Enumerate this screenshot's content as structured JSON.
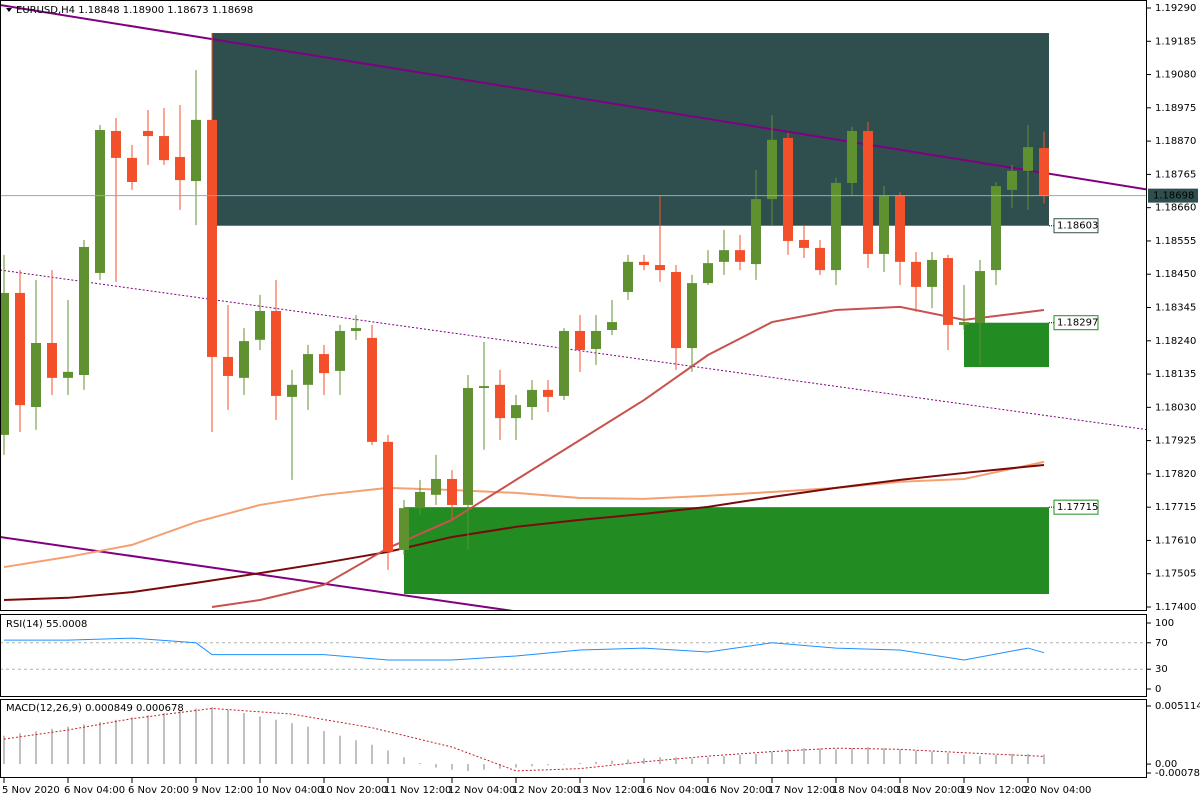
{
  "chart_data": [
    {
      "type": "candlestick",
      "title": "EURUSD,H4",
      "header_values": [
        "1.18848",
        "1.18900",
        "1.18673",
        "1.18698"
      ],
      "categories": [
        "5 Nov 2020",
        null,
        null,
        null,
        "6 Nov 04:00",
        null,
        null,
        null,
        "6 Nov 20:00",
        null,
        null,
        null,
        "9 Nov 12:00",
        null,
        null,
        null,
        "10 Nov 04:00",
        null,
        null,
        null,
        "10 Nov 20:00",
        null,
        null,
        null,
        "11 Nov 12:00",
        null,
        null,
        null,
        "12 Nov 04:00",
        null,
        null,
        null,
        "12 Nov 20:00",
        null,
        null,
        null,
        "13 Nov 12:00",
        null,
        null,
        null,
        "16 Nov 04:00",
        null,
        null,
        null,
        "16 Nov 20:00",
        null,
        null,
        null,
        "17 Nov 12:00",
        null,
        null,
        null,
        "18 Nov 04:00",
        null,
        null,
        null,
        "18 Nov 20:00",
        null,
        null,
        null,
        "19 Nov 12:00",
        null,
        null,
        null,
        "20 Nov 04:00",
        null
      ],
      "open": [
        1.17943,
        1.18391,
        1.18031,
        1.18233,
        1.18123,
        1.18132,
        1.18454,
        1.18902,
        1.18817,
        1.18902,
        1.18886,
        1.1882,
        1.18744,
        1.18937,
        1.18189,
        1.18123,
        1.18243,
        1.18334,
        1.18063,
        1.18101,
        1.18198,
        1.18145,
        1.18271,
        1.18249,
        1.17921,
        1.1758,
        1.17712,
        1.17754,
        1.17804,
        1.17722,
        1.18091,
        1.18101,
        1.17996,
        1.18031,
        1.18085,
        1.18066,
        1.18271,
        1.18214,
        1.18274,
        1.18394,
        1.18489,
        1.18479,
        1.18457,
        1.18217,
        1.18422,
        1.18489,
        1.18526,
        1.18482,
        1.18687,
        1.1888,
        1.18558,
        1.18533,
        1.18463,
        1.18738,
        1.18902,
        1.18514,
        1.187,
        1.18489,
        1.1841,
        1.18501,
        1.1829,
        1.18296,
        1.18463,
        1.18716,
        1.18776,
        1.18848
      ],
      "high": [
        1.18511,
        1.18463,
        1.18432,
        1.18463,
        1.18369,
        1.18558,
        1.18921,
        1.18943,
        1.18858,
        1.18968,
        1.18974,
        1.18984,
        1.19094,
        1.19211,
        1.18353,
        1.1828,
        1.18385,
        1.18432,
        1.18148,
        1.18227,
        1.18227,
        1.1829,
        1.18321,
        1.1829,
        1.17943,
        1.17738,
        1.17801,
        1.1788,
        1.17832,
        1.18132,
        1.18236,
        1.18148,
        1.18069,
        1.18116,
        1.18116,
        1.1828,
        1.18321,
        1.18321,
        1.18369,
        1.18511,
        1.18511,
        1.187,
        1.18479,
        1.18448,
        1.18526,
        1.1859,
        1.18574,
        1.18779,
        1.18952,
        1.18896,
        1.18605,
        1.18558,
        1.18754,
        1.18915,
        1.1893,
        1.18728,
        1.18709,
        1.1852,
        1.1852,
        1.18511,
        1.18416,
        1.18495,
        1.18741,
        1.18795,
        1.18921,
        1.189
      ],
      "low": [
        1.1788,
        1.17952,
        1.17959,
        1.18069,
        1.18069,
        1.18085,
        1.18432,
        1.18426,
        1.18716,
        1.18795,
        1.18795,
        1.18653,
        1.18605,
        1.17952,
        1.18022,
        1.18069,
        1.18211,
        1.1799,
        1.17801,
        1.18022,
        1.18069,
        1.18069,
        1.18243,
        1.17911,
        1.17517,
        1.17564,
        1.1769,
        1.17722,
        1.17675,
        1.1758,
        1.17896,
        1.17927,
        1.17927,
        1.1799,
        1.18015,
        1.18053,
        1.18142,
        1.18164,
        1.18258,
        1.18369,
        1.18463,
        1.18426,
        1.18148,
        1.18142,
        1.18416,
        1.18448,
        1.18463,
        1.18432,
        1.18605,
        1.18511,
        1.18501,
        1.18448,
        1.18416,
        1.187,
        1.1847,
        1.18457,
        1.18416,
        1.18331,
        1.18343,
        1.18211,
        1.18274,
        1.18164,
        1.18416,
        1.18659,
        1.18653,
        1.18673
      ],
      "close": [
        1.18391,
        1.18037,
        1.18233,
        1.18123,
        1.18142,
        1.18536,
        1.18905,
        1.18817,
        1.18741,
        1.18886,
        1.1881,
        1.18747,
        1.18937,
        1.18189,
        1.18129,
        1.18239,
        1.18334,
        1.18066,
        1.18101,
        1.18198,
        1.18138,
        1.18271,
        1.1828,
        1.17921,
        1.17574,
        1.17712,
        1.17763,
        1.17804,
        1.17722,
        1.18091,
        1.18097,
        1.17996,
        1.18037,
        1.18085,
        1.18063,
        1.18271,
        1.18211,
        1.18271,
        1.18299,
        1.18489,
        1.18479,
        1.18463,
        1.18217,
        1.18422,
        1.18485,
        1.18526,
        1.18489,
        1.18687,
        1.18874,
        1.18555,
        1.18533,
        1.18463,
        1.18738,
        1.18902,
        1.18514,
        1.18697,
        1.18489,
        1.1841,
        1.18495,
        1.1829,
        1.18299,
        1.1846,
        1.18728,
        1.18776,
        1.18851,
        1.18698
      ],
      "up_color": "#5f9130",
      "down_color": "#f2502a",
      "ylim": [
        1.174,
        1.1929
      ],
      "yticks": [
        {
          "value": 1.1929,
          "label": "1.19290"
        },
        1.19185,
        {
          "value": 1.1908,
          "label": "1.19080"
        },
        1.18975,
        {
          "value": 1.1887,
          "label": "1.18870"
        },
        1.18765,
        {
          "value": 1.1866,
          "label": "1.18660"
        },
        1.18555,
        {
          "value": 1.1845,
          "label": "1.18450"
        },
        1.18345,
        {
          "value": 1.1824,
          "label": "1.18240"
        },
        1.18135,
        {
          "value": 1.1803,
          "label": "1.18030"
        },
        1.17925,
        {
          "value": 1.1782,
          "label": "1.17820"
        },
        1.17715,
        {
          "value": 1.1761,
          "label": "1.17610"
        },
        1.17505,
        {
          "value": 1.174,
          "label": "1.17400"
        }
      ],
      "moving_averages": [
        {
          "color": "#f4a070",
          "x": [
            0,
            4,
            8,
            12,
            16,
            20,
            24,
            28,
            32,
            36,
            40,
            44,
            48,
            52,
            56,
            60,
            65
          ],
          "values": [
            1.17526,
            1.17558,
            1.17596,
            1.17668,
            1.17722,
            1.17754,
            1.17776,
            1.17769,
            1.1776,
            1.17744,
            1.17741,
            1.17751,
            1.17763,
            1.17776,
            1.17795,
            1.17804,
            1.17858
          ]
        },
        {
          "color": "#7a0a0a",
          "x": [
            0,
            4,
            8,
            12,
            16,
            20,
            24,
            28,
            32,
            36,
            40,
            44,
            48,
            52,
            56,
            60,
            65
          ],
          "values": [
            1.17422,
            1.17429,
            1.17447,
            1.17476,
            1.17507,
            1.17539,
            1.17574,
            1.17621,
            1.17653,
            1.17675,
            1.17694,
            1.17716,
            1.17747,
            1.17776,
            1.17801,
            1.17823,
            1.17848
          ]
        },
        {
          "color": "#c8524e",
          "x": [
            13,
            16,
            20,
            24,
            28,
            32,
            36,
            40,
            44,
            48,
            52,
            56,
            60,
            65
          ],
          "values": [
            1.174,
            1.17422,
            1.1747,
            1.17586,
            1.17675,
            1.17801,
            1.17927,
            1.18053,
            1.18195,
            1.18299,
            1.18337,
            1.18347,
            1.18306,
            1.18337
          ]
        }
      ],
      "zones": [
        {
          "start": 13,
          "top": 1.19211,
          "bottom": 1.18603,
          "color": "#2f4f4f",
          "labeled": "bottom"
        },
        {
          "start": 60,
          "top": 1.18297,
          "bottom": 1.18157,
          "color": "#228b22",
          "labeled": "top"
        },
        {
          "start": 25,
          "top": 1.17715,
          "bottom": 1.17441,
          "color": "#228b22",
          "labeled": "top"
        }
      ]
    },
    {
      "type": "line",
      "title": "RSI(14) 55.0008",
      "ylim": [
        0,
        100
      ],
      "yticks": [
        100,
        70,
        30,
        0
      ],
      "series": [
        {
          "color": "#1e90ff",
          "x": [
            0,
            4,
            8,
            12,
            13,
            16,
            20,
            24,
            28,
            32,
            36,
            40,
            44,
            48,
            52,
            56,
            60,
            64,
            65
          ],
          "values": [
            74,
            74,
            77,
            70,
            52,
            52,
            52,
            44,
            44,
            50,
            59,
            62,
            56,
            70,
            62,
            59,
            44,
            62,
            55.0008
          ]
        }
      ]
    },
    {
      "type": "macd",
      "title": "MACD(12,26,9) 0.000849 0.000678",
      "ylim": [
        -0.000786,
        0.005114
      ],
      "yticks": [
        0.005114,
        {
          "value": 0,
          "label": "0.00"
        },
        -0.000786
      ],
      "histogram": {
        "color": "#c0c0c0",
        "values": [
          0.0025,
          0.0027,
          0.0029,
          0.0031,
          0.0033,
          0.0035,
          0.0037,
          0.0039,
          0.0041,
          0.0043,
          0.0045,
          0.0047,
          0.0049,
          0.005,
          0.0048,
          0.0045,
          0.0042,
          0.0039,
          0.0036,
          0.0033,
          0.0029,
          0.0025,
          0.0021,
          0.0017,
          0.0012,
          0.0006,
          0.0001,
          -0.0003,
          -0.0005,
          -0.0006,
          -0.0005,
          -0.0004,
          -0.0003,
          -0.0002,
          -0.0001,
          0,
          0.0001,
          0.0002,
          0.0003,
          0.0004,
          0.0005,
          0.0006,
          0.0006,
          0.0005,
          0.0006,
          0.0007,
          0.0008,
          0.0009,
          0.0011,
          0.0013,
          0.0014,
          0.0014,
          0.0013,
          0.0014,
          0.0015,
          0.0014,
          0.0013,
          0.0012,
          0.0011,
          0.001,
          0.0008,
          0.0007,
          0.0008,
          0.0009,
          0.0009,
          0.000849
        ]
      },
      "signal": {
        "color": "#c0202a",
        "x": [
          0,
          4,
          8,
          13,
          18,
          23,
          28,
          32,
          36,
          40,
          44,
          48,
          52,
          56,
          60,
          65
        ],
        "values": [
          0.0022,
          0.003,
          0.004,
          0.0049,
          0.0044,
          0.0032,
          0.0015,
          -0.0006,
          -0.0004,
          0.0002,
          0.0007,
          0.0011,
          0.0014,
          0.0013,
          0.001,
          0.000678
        ]
      }
    }
  ]
}
